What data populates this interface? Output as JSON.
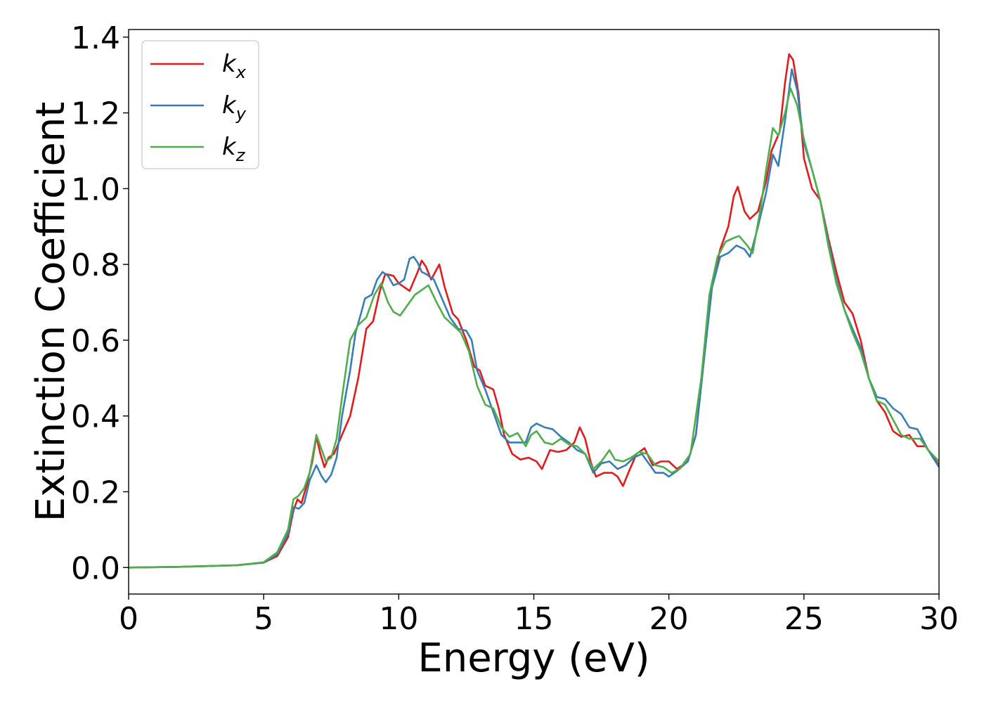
{
  "chart_data": {
    "type": "line",
    "title": "",
    "xlabel": "Energy (eV)",
    "ylabel": "Extinction Coefficient",
    "xlim": [
      0,
      30
    ],
    "ylim": [
      -0.07,
      1.42
    ],
    "xticks": [
      0,
      5,
      10,
      15,
      20,
      25,
      30
    ],
    "yticks": [
      0.0,
      0.2,
      0.4,
      0.6,
      0.8,
      1.0,
      1.2,
      1.4
    ],
    "xtick_labels": [
      "0",
      "5",
      "10",
      "15",
      "20",
      "25",
      "30"
    ],
    "ytick_labels": [
      "0.0",
      "0.2",
      "0.4",
      "0.6",
      "0.8",
      "1.0",
      "1.2",
      "1.4"
    ],
    "grid": false,
    "legend_position": "top-left",
    "series": [
      {
        "name": "k",
        "subscript": "x",
        "color": "#e41a1c",
        "points": [
          [
            0,
            0
          ],
          [
            2,
            0.002
          ],
          [
            4,
            0.006
          ],
          [
            5,
            0.013
          ],
          [
            5.5,
            0.03
          ],
          [
            5.9,
            0.08
          ],
          [
            6.1,
            0.15
          ],
          [
            6.25,
            0.18
          ],
          [
            6.4,
            0.17
          ],
          [
            6.6,
            0.22
          ],
          [
            6.8,
            0.28
          ],
          [
            6.95,
            0.345
          ],
          [
            7.1,
            0.3
          ],
          [
            7.25,
            0.265
          ],
          [
            7.4,
            0.29
          ],
          [
            7.6,
            0.3
          ],
          [
            7.9,
            0.35
          ],
          [
            8.2,
            0.4
          ],
          [
            8.5,
            0.5
          ],
          [
            8.8,
            0.63
          ],
          [
            9.05,
            0.65
          ],
          [
            9.3,
            0.73
          ],
          [
            9.5,
            0.775
          ],
          [
            9.8,
            0.77
          ],
          [
            10.0,
            0.75
          ],
          [
            10.2,
            0.74
          ],
          [
            10.4,
            0.73
          ],
          [
            10.7,
            0.78
          ],
          [
            10.85,
            0.81
          ],
          [
            11.0,
            0.795
          ],
          [
            11.2,
            0.76
          ],
          [
            11.5,
            0.8
          ],
          [
            11.7,
            0.74
          ],
          [
            12.0,
            0.67
          ],
          [
            12.2,
            0.655
          ],
          [
            12.5,
            0.6
          ],
          [
            12.8,
            0.53
          ],
          [
            13.0,
            0.52
          ],
          [
            13.2,
            0.48
          ],
          [
            13.5,
            0.47
          ],
          [
            13.7,
            0.42
          ],
          [
            13.9,
            0.35
          ],
          [
            14.2,
            0.3
          ],
          [
            14.5,
            0.285
          ],
          [
            14.8,
            0.29
          ],
          [
            15.1,
            0.28
          ],
          [
            15.3,
            0.26
          ],
          [
            15.6,
            0.31
          ],
          [
            15.9,
            0.305
          ],
          [
            16.2,
            0.31
          ],
          [
            16.5,
            0.33
          ],
          [
            16.7,
            0.37
          ],
          [
            16.9,
            0.34
          ],
          [
            17.1,
            0.28
          ],
          [
            17.3,
            0.24
          ],
          [
            17.6,
            0.25
          ],
          [
            17.9,
            0.25
          ],
          [
            18.1,
            0.24
          ],
          [
            18.3,
            0.215
          ],
          [
            18.5,
            0.25
          ],
          [
            18.8,
            0.3
          ],
          [
            19.1,
            0.315
          ],
          [
            19.4,
            0.27
          ],
          [
            19.7,
            0.28
          ],
          [
            20.0,
            0.28
          ],
          [
            20.3,
            0.26
          ],
          [
            20.7,
            0.28
          ],
          [
            21.0,
            0.35
          ],
          [
            21.3,
            0.55
          ],
          [
            21.6,
            0.75
          ],
          [
            21.9,
            0.84
          ],
          [
            22.2,
            0.9
          ],
          [
            22.4,
            0.98
          ],
          [
            22.55,
            1.005
          ],
          [
            22.8,
            0.94
          ],
          [
            23.0,
            0.92
          ],
          [
            23.3,
            0.94
          ],
          [
            23.6,
            1.02
          ],
          [
            23.8,
            1.1
          ],
          [
            24.1,
            1.15
          ],
          [
            24.3,
            1.28
          ],
          [
            24.45,
            1.355
          ],
          [
            24.6,
            1.34
          ],
          [
            24.8,
            1.25
          ],
          [
            25.0,
            1.08
          ],
          [
            25.3,
            1.0
          ],
          [
            25.6,
            0.97
          ],
          [
            25.9,
            0.87
          ],
          [
            26.2,
            0.78
          ],
          [
            26.5,
            0.7
          ],
          [
            26.8,
            0.67
          ],
          [
            27.1,
            0.6
          ],
          [
            27.4,
            0.5
          ],
          [
            27.7,
            0.44
          ],
          [
            28.0,
            0.41
          ],
          [
            28.3,
            0.36
          ],
          [
            28.6,
            0.345
          ],
          [
            28.9,
            0.35
          ],
          [
            29.2,
            0.32
          ],
          [
            29.5,
            0.32
          ],
          [
            29.7,
            0.3
          ],
          [
            30.0,
            0.27
          ]
        ]
      },
      {
        "name": "k",
        "subscript": "y",
        "color": "#377eb8",
        "points": [
          [
            0,
            0
          ],
          [
            2,
            0.002
          ],
          [
            4,
            0.006
          ],
          [
            5,
            0.013
          ],
          [
            5.5,
            0.035
          ],
          [
            5.9,
            0.09
          ],
          [
            6.1,
            0.16
          ],
          [
            6.3,
            0.155
          ],
          [
            6.5,
            0.17
          ],
          [
            6.7,
            0.23
          ],
          [
            6.95,
            0.27
          ],
          [
            7.15,
            0.24
          ],
          [
            7.3,
            0.225
          ],
          [
            7.5,
            0.245
          ],
          [
            7.7,
            0.29
          ],
          [
            7.9,
            0.4
          ],
          [
            8.2,
            0.52
          ],
          [
            8.4,
            0.62
          ],
          [
            8.6,
            0.67
          ],
          [
            8.75,
            0.71
          ],
          [
            9.0,
            0.72
          ],
          [
            9.2,
            0.76
          ],
          [
            9.4,
            0.78
          ],
          [
            9.6,
            0.77
          ],
          [
            9.8,
            0.745
          ],
          [
            10.0,
            0.75
          ],
          [
            10.2,
            0.76
          ],
          [
            10.4,
            0.815
          ],
          [
            10.55,
            0.82
          ],
          [
            10.7,
            0.805
          ],
          [
            10.85,
            0.78
          ],
          [
            11.0,
            0.775
          ],
          [
            11.3,
            0.76
          ],
          [
            11.6,
            0.71
          ],
          [
            11.9,
            0.66
          ],
          [
            12.2,
            0.63
          ],
          [
            12.5,
            0.625
          ],
          [
            12.7,
            0.6
          ],
          [
            12.9,
            0.52
          ],
          [
            13.2,
            0.47
          ],
          [
            13.5,
            0.41
          ],
          [
            13.8,
            0.35
          ],
          [
            14.1,
            0.33
          ],
          [
            14.4,
            0.33
          ],
          [
            14.7,
            0.33
          ],
          [
            14.9,
            0.37
          ],
          [
            15.1,
            0.38
          ],
          [
            15.4,
            0.37
          ],
          [
            15.7,
            0.365
          ],
          [
            16.0,
            0.345
          ],
          [
            16.3,
            0.33
          ],
          [
            16.6,
            0.31
          ],
          [
            16.9,
            0.3
          ],
          [
            17.2,
            0.25
          ],
          [
            17.5,
            0.275
          ],
          [
            17.8,
            0.28
          ],
          [
            18.1,
            0.26
          ],
          [
            18.4,
            0.27
          ],
          [
            18.7,
            0.29
          ],
          [
            19.0,
            0.3
          ],
          [
            19.2,
            0.28
          ],
          [
            19.5,
            0.25
          ],
          [
            19.8,
            0.25
          ],
          [
            20.0,
            0.24
          ],
          [
            20.3,
            0.255
          ],
          [
            20.7,
            0.28
          ],
          [
            21.0,
            0.35
          ],
          [
            21.3,
            0.55
          ],
          [
            21.6,
            0.74
          ],
          [
            21.9,
            0.82
          ],
          [
            22.2,
            0.83
          ],
          [
            22.5,
            0.85
          ],
          [
            22.8,
            0.84
          ],
          [
            23.0,
            0.82
          ],
          [
            23.3,
            0.9
          ],
          [
            23.6,
            0.99
          ],
          [
            23.85,
            1.09
          ],
          [
            24.05,
            1.06
          ],
          [
            24.3,
            1.18
          ],
          [
            24.55,
            1.315
          ],
          [
            24.75,
            1.26
          ],
          [
            25.0,
            1.12
          ],
          [
            25.3,
            1.05
          ],
          [
            25.6,
            0.97
          ],
          [
            25.9,
            0.86
          ],
          [
            26.2,
            0.76
          ],
          [
            26.5,
            0.68
          ],
          [
            26.8,
            0.63
          ],
          [
            27.1,
            0.58
          ],
          [
            27.4,
            0.5
          ],
          [
            27.7,
            0.45
          ],
          [
            28.0,
            0.445
          ],
          [
            28.3,
            0.42
          ],
          [
            28.6,
            0.405
          ],
          [
            28.9,
            0.37
          ],
          [
            29.2,
            0.365
          ],
          [
            29.6,
            0.31
          ],
          [
            30.0,
            0.265
          ]
        ]
      },
      {
        "name": "k",
        "subscript": "z",
        "color": "#4daf4a",
        "points": [
          [
            0,
            0
          ],
          [
            2,
            0.002
          ],
          [
            4,
            0.006
          ],
          [
            5,
            0.014
          ],
          [
            5.5,
            0.04
          ],
          [
            5.9,
            0.1
          ],
          [
            6.1,
            0.18
          ],
          [
            6.3,
            0.19
          ],
          [
            6.5,
            0.21
          ],
          [
            6.7,
            0.25
          ],
          [
            6.95,
            0.35
          ],
          [
            7.1,
            0.32
          ],
          [
            7.3,
            0.28
          ],
          [
            7.5,
            0.29
          ],
          [
            7.7,
            0.34
          ],
          [
            7.9,
            0.45
          ],
          [
            8.2,
            0.6
          ],
          [
            8.5,
            0.64
          ],
          [
            8.8,
            0.66
          ],
          [
            9.1,
            0.72
          ],
          [
            9.35,
            0.75
          ],
          [
            9.6,
            0.7
          ],
          [
            9.8,
            0.675
          ],
          [
            10.05,
            0.665
          ],
          [
            10.3,
            0.69
          ],
          [
            10.6,
            0.72
          ],
          [
            10.9,
            0.735
          ],
          [
            11.1,
            0.745
          ],
          [
            11.4,
            0.7
          ],
          [
            11.7,
            0.66
          ],
          [
            12.0,
            0.64
          ],
          [
            12.3,
            0.62
          ],
          [
            12.6,
            0.57
          ],
          [
            12.9,
            0.48
          ],
          [
            13.2,
            0.43
          ],
          [
            13.5,
            0.42
          ],
          [
            13.8,
            0.37
          ],
          [
            14.1,
            0.345
          ],
          [
            14.4,
            0.355
          ],
          [
            14.7,
            0.32
          ],
          [
            14.9,
            0.35
          ],
          [
            15.1,
            0.36
          ],
          [
            15.4,
            0.33
          ],
          [
            15.7,
            0.325
          ],
          [
            16.0,
            0.34
          ],
          [
            16.3,
            0.325
          ],
          [
            16.6,
            0.32
          ],
          [
            16.9,
            0.3
          ],
          [
            17.2,
            0.26
          ],
          [
            17.5,
            0.28
          ],
          [
            17.8,
            0.31
          ],
          [
            18.0,
            0.285
          ],
          [
            18.3,
            0.28
          ],
          [
            18.6,
            0.29
          ],
          [
            18.9,
            0.305
          ],
          [
            19.2,
            0.3
          ],
          [
            19.5,
            0.27
          ],
          [
            19.8,
            0.265
          ],
          [
            20.1,
            0.25
          ],
          [
            20.4,
            0.26
          ],
          [
            20.8,
            0.3
          ],
          [
            21.2,
            0.5
          ],
          [
            21.5,
            0.72
          ],
          [
            21.8,
            0.82
          ],
          [
            22.1,
            0.86
          ],
          [
            22.4,
            0.87
          ],
          [
            22.6,
            0.875
          ],
          [
            22.9,
            0.85
          ],
          [
            23.1,
            0.83
          ],
          [
            23.4,
            0.95
          ],
          [
            23.6,
            1.05
          ],
          [
            23.85,
            1.16
          ],
          [
            24.05,
            1.14
          ],
          [
            24.3,
            1.2
          ],
          [
            24.5,
            1.265
          ],
          [
            24.75,
            1.22
          ],
          [
            25.0,
            1.13
          ],
          [
            25.3,
            1.05
          ],
          [
            25.6,
            0.97
          ],
          [
            25.9,
            0.85
          ],
          [
            26.2,
            0.75
          ],
          [
            26.5,
            0.68
          ],
          [
            26.8,
            0.62
          ],
          [
            27.1,
            0.57
          ],
          [
            27.4,
            0.5
          ],
          [
            27.7,
            0.44
          ],
          [
            28.0,
            0.43
          ],
          [
            28.3,
            0.39
          ],
          [
            28.6,
            0.35
          ],
          [
            28.9,
            0.34
          ],
          [
            29.3,
            0.34
          ],
          [
            29.6,
            0.31
          ],
          [
            30.0,
            0.28
          ]
        ]
      }
    ]
  }
}
